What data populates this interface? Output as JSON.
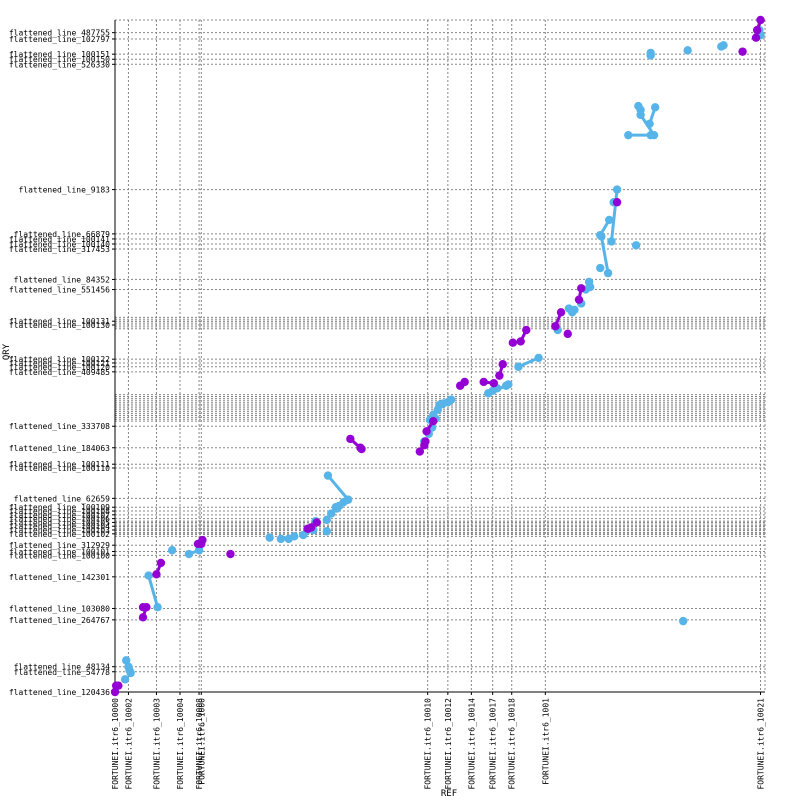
{
  "chart_data": {
    "type": "scatter",
    "xlabel": "REF",
    "ylabel": "QRY",
    "grid": true,
    "colors": {
      "forward": "#56b4e9",
      "reverse": "#9400d3",
      "grid": "#888888",
      "axis": "#000000"
    },
    "x_ticks": [
      {
        "label": "FORTUNEI.itr6_10000",
        "x": 0
      },
      {
        "label": "FORTUNEI.itr6_10002",
        "x": 12
      },
      {
        "label": "FORTUNEI.itr6_10003",
        "x": 37
      },
      {
        "label": "FORTUNEI.itr6_10004",
        "x": 58
      },
      {
        "label": "FORTUNEI.itr6_10008",
        "x": 75
      },
      {
        "label": "FORTUNEI.itr6_1000",
        "x": 77
      },
      {
        "label": "FORTUNEI.itr6_10010",
        "x": 279
      },
      {
        "label": "FORTUNEI.itr6_10012",
        "x": 297
      },
      {
        "label": "FORTUNEI.itr6_10014",
        "x": 318
      },
      {
        "label": "FORTUNEI.itr6_10017",
        "x": 337
      },
      {
        "label": "FORTUNEI.itr6_10018",
        "x": 354
      },
      {
        "label": "FORTUNEI.itr6_1001",
        "x": 384
      },
      {
        "label": "FORTUNEI.itr6_10021",
        "x": 576
      }
    ],
    "y_ticks": [
      {
        "label": "flattened_line_120436",
        "y": 0
      },
      {
        "label": "flattened_line_54778",
        "y": 16
      },
      {
        "label": "flattened_line_48134",
        "y": 20
      },
      {
        "label": "flattened_line_264767",
        "y": 57
      },
      {
        "label": "flattened_line_103080",
        "y": 66
      },
      {
        "label": "flattened_line_142301",
        "y": 91
      },
      {
        "label": "flattened_line_100100",
        "y": 108
      },
      {
        "label": "flattened_line_100101",
        "y": 111
      },
      {
        "label": "flattened_line_312929",
        "y": 116
      },
      {
        "label": "flattened_line_100102",
        "y": 125
      },
      {
        "label": "flattened_line_100103",
        "y": 128
      },
      {
        "label": "flattened_line_100104",
        "y": 131
      },
      {
        "label": "flattened_line_100105",
        "y": 134
      },
      {
        "label": "flattened_line_100106",
        "y": 137
      },
      {
        "label": "flattened_line_100107",
        "y": 140
      },
      {
        "label": "flattened_line_100108",
        "y": 143
      },
      {
        "label": "flattened_line_100109",
        "y": 146
      },
      {
        "label": "flattened_line_62659",
        "y": 153
      },
      {
        "label": "flattened_line_100110",
        "y": 177
      },
      {
        "label": "flattened_line_100111",
        "y": 180
      },
      {
        "label": "flattened_line_184063",
        "y": 193
      },
      {
        "label": "flattened_line_333708",
        "y": 210
      },
      {
        "label": "flattened_line_409485",
        "y": 253
      },
      {
        "label": "flattened_line_100120",
        "y": 257
      },
      {
        "label": "flattened_line_100121",
        "y": 260
      },
      {
        "label": "flattened_line_100122",
        "y": 263
      },
      {
        "label": "flattened_line_100130",
        "y": 290
      },
      {
        "label": "flattened_line_100131",
        "y": 293
      },
      {
        "label": "flattened_line_551456",
        "y": 318
      },
      {
        "label": "flattened_line_84352",
        "y": 326
      },
      {
        "label": "flattened_line_317453",
        "y": 350
      },
      {
        "label": "flattened_line_100140",
        "y": 354
      },
      {
        "label": "flattened_line_100141",
        "y": 358
      },
      {
        "label": "flattened_line_66879",
        "y": 362
      },
      {
        "label": "flattened_line_9183",
        "y": 397
      },
      {
        "label": "flattened_line_526330",
        "y": 496
      },
      {
        "label": "flattened_line_100150",
        "y": 500
      },
      {
        "label": "flattened_line_100151",
        "y": 504
      },
      {
        "label": "flattened_line_102797",
        "y": 516
      },
      {
        "label": "flattened_line_487755",
        "y": 521
      }
    ],
    "y_block_grids": [
      {
        "from": 123,
        "to": 136,
        "step": 1.5
      },
      {
        "from": 214,
        "to": 236,
        "step": 1.5
      },
      {
        "from": 287,
        "to": 296,
        "step": 1.5
      }
    ],
    "series": [
      {
        "name": "forward",
        "segments": [
          [
            [
              10,
              25
            ],
            [
              14,
              15
            ]
          ],
          [
            [
              12,
              20
            ],
            [
              13,
              17
            ]
          ],
          [
            [
              30,
              92
            ],
            [
              38,
              67
            ]
          ],
          [
            [
              66,
              109
            ],
            [
              75,
              112
            ]
          ],
          [
            [
              148,
              121
            ],
            [
              160,
              123
            ]
          ],
          [
            [
              168,
              124
            ],
            [
              177,
              128
            ]
          ],
          [
            [
              189,
              136
            ],
            [
              193,
              141
            ]
          ],
          [
            [
              198,
              145
            ],
            [
              208,
              152
            ]
          ],
          [
            [
              190,
              171
            ],
            [
              208,
              152
            ]
          ],
          [
            [
              280,
              204
            ],
            [
              283,
              209
            ]
          ],
          [
            [
              288,
              223
            ],
            [
              300,
              231
            ]
          ],
          [
            [
              286,
              216
            ],
            [
              284,
              219
            ]
          ],
          [
            [
              333,
              236
            ],
            [
              349,
              242
            ]
          ],
          [
            [
              360,
              257
            ],
            [
              378,
              264
            ]
          ],
          [
            [
              408,
              300
            ],
            [
              410,
              302
            ]
          ],
          [
            [
              420,
              318
            ],
            [
              424,
              320
            ]
          ],
          [
            [
              433,
              361
            ],
            [
              441,
              373
            ]
          ],
          [
            [
              434,
              360
            ],
            [
              440,
              331
            ]
          ],
          [
            [
              448,
              397
            ],
            [
              443,
              356
            ]
          ],
          [
            [
              469,
              456
            ],
            [
              481,
              440
            ]
          ],
          [
            [
              482,
              462
            ],
            [
              477,
              449
            ]
          ],
          [
            [
              458,
              440
            ],
            [
              478,
              440
            ]
          ],
          [
            [
              467,
              463
            ],
            [
              469,
              460
            ]
          ],
          [
            [
              541,
              510
            ],
            [
              543,
              511
            ]
          ],
          [
            [
              575,
              523
            ],
            [
              576,
              519
            ]
          ]
        ],
        "points": [
          [
            9,
            10
          ],
          [
            51,
            112
          ],
          [
            138,
            122
          ],
          [
            155,
            121
          ],
          [
            189,
            127
          ],
          [
            197,
            146
          ],
          [
            179,
            135
          ],
          [
            200,
            147
          ],
          [
            204,
            150
          ],
          [
            276,
            198
          ],
          [
            281,
            215
          ],
          [
            290,
            227
          ],
          [
            293,
            228
          ],
          [
            297,
            229
          ],
          [
            337,
            238
          ],
          [
            341,
            240
          ],
          [
            351,
            243
          ],
          [
            395,
            286
          ],
          [
            405,
            303
          ],
          [
            416,
            307
          ],
          [
            423,
            324
          ],
          [
            433,
            335
          ],
          [
            445,
            387
          ],
          [
            465,
            353
          ],
          [
            478,
            503
          ],
          [
            478,
            505
          ],
          [
            507,
            56
          ],
          [
            511,
            507
          ]
        ]
      },
      {
        "name": "reverse",
        "segments": [
          [
            [
              0,
              0
            ],
            [
              3,
              5
            ]
          ],
          [
            [
              25,
              59
            ],
            [
              28,
              67
            ]
          ],
          [
            [
              37,
              93
            ],
            [
              41,
              102
            ]
          ],
          [
            [
              74,
              117
            ],
            [
              78,
              120
            ]
          ],
          [
            [
              172,
              129
            ],
            [
              180,
              134
            ]
          ],
          [
            [
              210,
              200
            ],
            [
              220,
              192
            ]
          ],
          [
            [
              272,
              190
            ],
            [
              276,
              195
            ]
          ],
          [
            [
              278,
              206
            ],
            [
              284,
              214
            ]
          ],
          [
            [
              308,
              242
            ],
            [
              312,
              245
            ]
          ],
          [
            [
              329,
              245
            ],
            [
              338,
              244
            ]
          ],
          [
            [
              343,
              250
            ],
            [
              346,
              259
            ]
          ],
          [
            [
              362,
              277
            ],
            [
              367,
              286
            ]
          ],
          [
            [
              393,
              289
            ],
            [
              398,
              300
            ]
          ],
          [
            [
              414,
              310
            ],
            [
              416,
              319
            ]
          ],
          [
            [
              573,
              523
            ],
            [
              576,
              531
            ]
          ]
        ],
        "points": [
          [
            1,
            5
          ],
          [
            25,
            67
          ],
          [
            77,
            117
          ],
          [
            103,
            109
          ],
          [
            175,
            130
          ],
          [
            219,
            193
          ],
          [
            277,
            198
          ],
          [
            355,
            276
          ],
          [
            404,
            283
          ],
          [
            448,
            387
          ],
          [
            560,
            506
          ],
          [
            572,
            517
          ]
        ]
      }
    ]
  }
}
